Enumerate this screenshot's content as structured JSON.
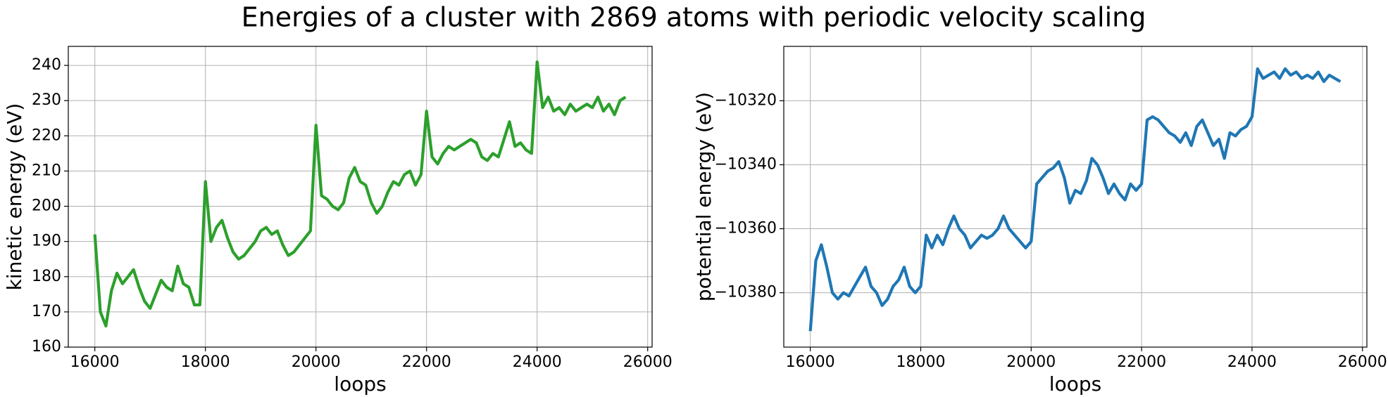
{
  "title": "Energies of a cluster with 2869 atoms with periodic velocity scaling",
  "chart_data": [
    {
      "type": "line",
      "xlabel": "loops",
      "ylabel": "kinetic energy (eV)",
      "x": [
        16000,
        16100,
        16200,
        16300,
        16400,
        16500,
        16600,
        16700,
        16800,
        16900,
        17000,
        17100,
        17200,
        17300,
        17400,
        17500,
        17600,
        17700,
        17800,
        17900,
        18000,
        18100,
        18200,
        18300,
        18400,
        18500,
        18600,
        18700,
        18800,
        18900,
        19000,
        19100,
        19200,
        19300,
        19400,
        19500,
        19600,
        19700,
        19800,
        19900,
        20000,
        20100,
        20200,
        20300,
        20400,
        20500,
        20600,
        20700,
        20800,
        20900,
        21000,
        21100,
        21200,
        21300,
        21400,
        21500,
        21600,
        21700,
        21800,
        21900,
        22000,
        22100,
        22200,
        22300,
        22400,
        22500,
        22600,
        22700,
        22800,
        22900,
        23000,
        23100,
        23200,
        23300,
        23400,
        23500,
        23600,
        23700,
        23800,
        23900,
        24000,
        24100,
        24200,
        24300,
        24400,
        24500,
        24600,
        24700,
        24800,
        24900,
        25000,
        25100,
        25200,
        25300,
        25400,
        25500,
        25600
      ],
      "series": [
        {
          "color": "#2ca02c",
          "values": [
            192,
            170,
            166,
            176,
            181,
            178,
            180,
            182,
            177,
            173,
            171,
            175,
            179,
            177,
            176,
            183,
            178,
            177,
            172,
            172,
            207,
            190,
            194,
            196,
            191,
            187,
            185,
            186,
            188,
            190,
            193,
            194,
            192,
            193,
            189,
            186,
            187,
            189,
            191,
            193,
            223,
            203,
            202,
            200,
            199,
            201,
            208,
            211,
            207,
            206,
            201,
            198,
            200,
            204,
            207,
            206,
            209,
            210,
            206,
            209,
            227,
            214,
            212,
            215,
            217,
            216,
            217,
            218,
            219,
            218,
            214,
            213,
            215,
            214,
            219,
            224,
            217,
            218,
            216,
            215,
            241,
            228,
            231,
            227,
            228,
            226,
            229,
            227,
            228,
            229,
            228,
            231,
            227,
            229,
            226,
            230,
            231
          ]
        }
      ],
      "xlim": [
        15520,
        26080
      ],
      "xticks": [
        16000,
        18000,
        20000,
        22000,
        24000,
        26000
      ],
      "ylim": [
        160,
        245.4
      ],
      "yticks": [
        160,
        170,
        180,
        190,
        200,
        210,
        220,
        230,
        240
      ],
      "grid": true
    },
    {
      "type": "line",
      "xlabel": "loops",
      "ylabel": "potential energy (eV)",
      "x": [
        16000,
        16100,
        16200,
        16300,
        16400,
        16500,
        16600,
        16700,
        16800,
        16900,
        17000,
        17100,
        17200,
        17300,
        17400,
        17500,
        17600,
        17700,
        17800,
        17900,
        18000,
        18100,
        18200,
        18300,
        18400,
        18500,
        18600,
        18700,
        18800,
        18900,
        19000,
        19100,
        19200,
        19300,
        19400,
        19500,
        19600,
        19700,
        19800,
        19900,
        20000,
        20100,
        20200,
        20300,
        20400,
        20500,
        20600,
        20700,
        20800,
        20900,
        21000,
        21100,
        21200,
        21300,
        21400,
        21500,
        21600,
        21700,
        21800,
        21900,
        22000,
        22100,
        22200,
        22300,
        22400,
        22500,
        22600,
        22700,
        22800,
        22900,
        23000,
        23100,
        23200,
        23300,
        23400,
        23500,
        23600,
        23700,
        23800,
        23900,
        24000,
        24100,
        24200,
        24300,
        24400,
        24500,
        24600,
        24700,
        24800,
        24900,
        25000,
        25100,
        25200,
        25300,
        25400,
        25500,
        25600
      ],
      "series": [
        {
          "color": "#1f77b4",
          "values": [
            -10392,
            -10370,
            -10365,
            -10372,
            -10380,
            -10382,
            -10380,
            -10381,
            -10378,
            -10375,
            -10372,
            -10378,
            -10380,
            -10384,
            -10382,
            -10378,
            -10376,
            -10372,
            -10378,
            -10380,
            -10378,
            -10362,
            -10366,
            -10362,
            -10365,
            -10360,
            -10356,
            -10360,
            -10362,
            -10366,
            -10364,
            -10362,
            -10363,
            -10362,
            -10360,
            -10356,
            -10360,
            -10362,
            -10364,
            -10366,
            -10364,
            -10346,
            -10344,
            -10342,
            -10341,
            -10339,
            -10344,
            -10352,
            -10348,
            -10349,
            -10345,
            -10338,
            -10340,
            -10344,
            -10349,
            -10346,
            -10349,
            -10351,
            -10346,
            -10348,
            -10346,
            -10326,
            -10325,
            -10326,
            -10328,
            -10330,
            -10331,
            -10333,
            -10330,
            -10334,
            -10328,
            -10326,
            -10330,
            -10334,
            -10332,
            -10338,
            -10330,
            -10331,
            -10329,
            -10328,
            -10325,
            -10310,
            -10313,
            -10312,
            -10311,
            -10313,
            -10310,
            -10312,
            -10311,
            -10313,
            -10312,
            -10313,
            -10311,
            -10314,
            -10312,
            -10313,
            -10314
          ]
        }
      ],
      "xlim": [
        15520,
        26080
      ],
      "xticks": [
        16000,
        18000,
        20000,
        22000,
        24000,
        26000
      ],
      "ylim": [
        -10397,
        -10303
      ],
      "yticks": [
        {
          "value": -10380,
          "label": "−10380"
        },
        {
          "value": -10360,
          "label": "−10360"
        },
        {
          "value": -10340,
          "label": "−10340"
        },
        {
          "value": -10320,
          "label": "−10320"
        }
      ],
      "grid": true
    }
  ]
}
